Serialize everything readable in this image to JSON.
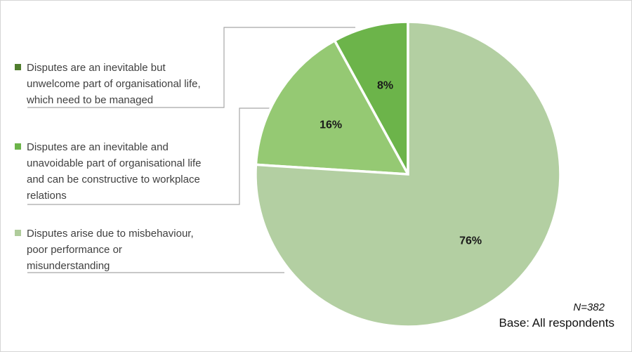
{
  "chart_data": {
    "type": "pie",
    "title": "",
    "start_angle_deg_from_12oclock": 0,
    "legend_position": "left",
    "slices": [
      {
        "label": "Disputes are an inevitable but\nunwelcome part of organisational life,\nwhich need to be managed",
        "value": 8,
        "display": "8%",
        "color": "#6CB44A",
        "legend_color": "#507D2D"
      },
      {
        "label": "Disputes are an inevitable and\nunavoidable part of organisational life\nand can be constructive to workplace\nrelations",
        "value": 16,
        "display": "16%",
        "color": "#95C973",
        "legend_color": "#6CB44A"
      },
      {
        "label": "Disputes arise due to misbehaviour,\npoor performance or\nmisunderstanding",
        "value": 76,
        "display": "76%",
        "color": "#B3CFA2",
        "legend_color": "#AFCC9B"
      }
    ],
    "slice_border_color": "#FFFFFF",
    "leader_line_color": "#A6A6A6"
  },
  "footnote": {
    "n": "N=382",
    "base": "Base: All respondents"
  }
}
